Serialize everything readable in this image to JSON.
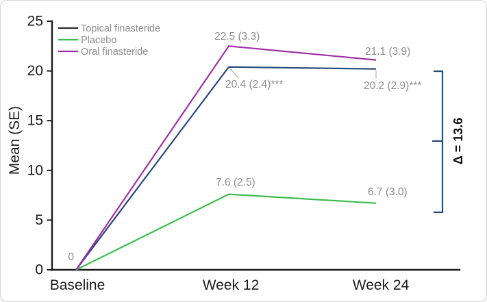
{
  "chart_data": {
    "type": "line",
    "title": "",
    "ylabel": "Mean (SE)",
    "xlabel": "",
    "categories": [
      "Baseline",
      "Week 12",
      "Week 24"
    ],
    "y_ticks": [
      "0",
      "5",
      "10",
      "15",
      "20",
      "25"
    ],
    "ylim": [
      0,
      25
    ],
    "grid": false,
    "legend_position": "top-left",
    "series": [
      {
        "name": "Topical finasteride",
        "legend_color": "#2b2b2b",
        "color": "#27497b",
        "values": [
          0,
          20.4,
          20.2
        ],
        "point_labels": [
          "0",
          "20.4 (2.4)***",
          "20.2 (2.9)***"
        ]
      },
      {
        "name": "Placebo",
        "legend_color": "#3dbd4e",
        "color": "#3dbd4e",
        "values": [
          0,
          7.6,
          6.7
        ],
        "point_labels": [
          null,
          "7.6 (2.5)",
          "6.7 (3.0)"
        ]
      },
      {
        "name": "Oral finasteride",
        "legend_color": "#9e2fa4",
        "color": "#9e2fa4",
        "values": [
          0,
          22.5,
          21.1
        ],
        "point_labels": [
          null,
          "22.5 (3.3)",
          "21.1 (3.9)"
        ]
      }
    ],
    "annotation": {
      "delta_label": "Δ = 13.6",
      "delta_color": "#27497b"
    },
    "colors": {
      "axis": "#1a1a1a",
      "muted_text": "#8c8c8c"
    }
  }
}
